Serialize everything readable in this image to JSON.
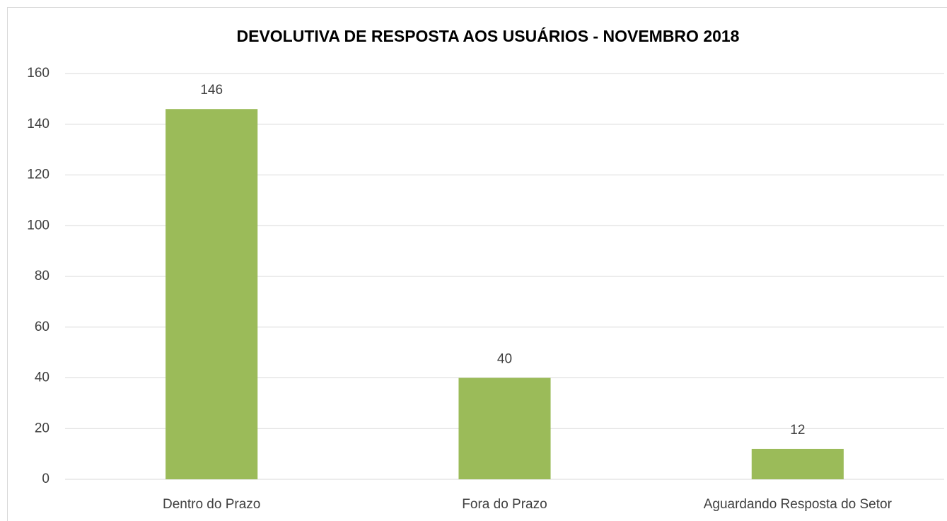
{
  "chart_data": {
    "type": "bar",
    "title": "DEVOLUTIVA DE RESPOSTA AOS USUÁRIOS - NOVEMBRO 2018",
    "categories": [
      "Dentro do Prazo",
      "Fora do Prazo",
      "Aguardando Resposta do Setor"
    ],
    "values": [
      146,
      40,
      12
    ],
    "color": "#9bbb59",
    "ylim": [
      0,
      160
    ],
    "yticks": [
      0,
      20,
      40,
      60,
      80,
      100,
      120,
      140,
      160
    ],
    "grid": true
  }
}
